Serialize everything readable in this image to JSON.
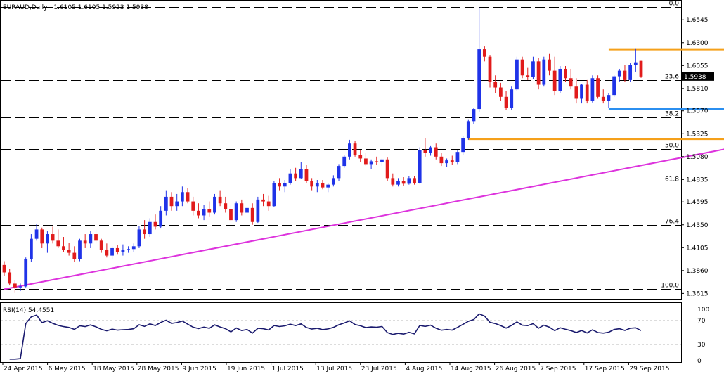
{
  "header": {
    "symbol": "EURAUD,Daily",
    "ohlc": "1.6105 1.6105 1.5923 1.5938"
  },
  "rsi_header": "RSI(14) 54.4551",
  "colors": {
    "bull": "#1f33e8",
    "bear": "#e11b1b",
    "trendline": "#dd33dd",
    "resistance": "#f5a01a",
    "support": "#2b8ff0",
    "rsi": "#1a1a6e",
    "grid": "#000000"
  },
  "chart_data": {
    "type": "candlestick",
    "price_axis": {
      "ticks": [
        "1.6545",
        "1.6300",
        "1.6055",
        "1.5810",
        "1.5570",
        "1.5325",
        "1.5080",
        "1.4835",
        "1.4595",
        "1.4350",
        "1.4105",
        "1.3860",
        "1.3615"
      ],
      "range": [
        1.355,
        1.672
      ],
      "current_price": "1.5938"
    },
    "date_axis": [
      "24 Apr 2015",
      "6 May 2015",
      "18 May 2015",
      "28 May 2015",
      "9 Jun 2015",
      "19 Jun 2015",
      "1 Jul 2015",
      "13 Jul 2015",
      "23 Jul 2015",
      "4 Aug 2015",
      "14 Aug 2015",
      "26 Aug 2015",
      "7 Sep 2015",
      "17 Sep 2015",
      "29 Sep 2015"
    ],
    "fibonacci": [
      {
        "label": "0.0",
        "price": 1.668
      },
      {
        "label": "23.6",
        "price": 1.5902
      },
      {
        "label": "38.2",
        "price": 1.55
      },
      {
        "label": "50.0",
        "price": 1.516
      },
      {
        "label": "61.8",
        "price": 1.48
      },
      {
        "label": "76.4",
        "price": 1.435
      },
      {
        "label": "100.0",
        "price": 1.366
      }
    ],
    "annotations": {
      "trendline": [
        [
          1.366,
          0
        ],
        [
          1.539,
          154
        ]
      ],
      "resistance_high": {
        "price": 1.623,
        "from": 112,
        "to": 154
      },
      "support_low": {
        "price": 1.559,
        "from": 112,
        "to": 154
      },
      "resistance_mid": {
        "price": 1.527,
        "from": 86,
        "to": 154
      }
    },
    "candles": [
      [
        1.392,
        1.396,
        1.38,
        1.384
      ],
      [
        1.384,
        1.388,
        1.37,
        1.372
      ],
      [
        1.372,
        1.376,
        1.362,
        1.368
      ],
      [
        1.368,
        1.372,
        1.364,
        1.369
      ],
      [
        1.369,
        1.4,
        1.368,
        1.398
      ],
      [
        1.398,
        1.425,
        1.395,
        1.42
      ],
      [
        1.42,
        1.436,
        1.418,
        1.43
      ],
      [
        1.43,
        1.432,
        1.41,
        1.415
      ],
      [
        1.415,
        1.428,
        1.405,
        1.425
      ],
      [
        1.425,
        1.433,
        1.415,
        1.418
      ],
      [
        1.418,
        1.43,
        1.41,
        1.412
      ],
      [
        1.412,
        1.422,
        1.406,
        1.408
      ],
      [
        1.408,
        1.416,
        1.402,
        1.405
      ],
      [
        1.405,
        1.412,
        1.395,
        1.398
      ],
      [
        1.398,
        1.42,
        1.396,
        1.418
      ],
      [
        1.418,
        1.425,
        1.41,
        1.415
      ],
      [
        1.415,
        1.428,
        1.41,
        1.425
      ],
      [
        1.425,
        1.43,
        1.415,
        1.418
      ],
      [
        1.418,
        1.42,
        1.405,
        1.408
      ],
      [
        1.408,
        1.415,
        1.4,
        1.402
      ],
      [
        1.402,
        1.412,
        1.398,
        1.41
      ],
      [
        1.41,
        1.413,
        1.403,
        1.406
      ],
      [
        1.406,
        1.414,
        1.402,
        1.408
      ],
      [
        1.408,
        1.412,
        1.405,
        1.409
      ],
      [
        1.409,
        1.415,
        1.406,
        1.412
      ],
      [
        1.412,
        1.434,
        1.41,
        1.43
      ],
      [
        1.43,
        1.44,
        1.42,
        1.425
      ],
      [
        1.425,
        1.442,
        1.422,
        1.438
      ],
      [
        1.438,
        1.446,
        1.43,
        1.433
      ],
      [
        1.433,
        1.455,
        1.431,
        1.45
      ],
      [
        1.45,
        1.472,
        1.445,
        1.465
      ],
      [
        1.465,
        1.47,
        1.45,
        1.455
      ],
      [
        1.455,
        1.468,
        1.45,
        1.46
      ],
      [
        1.46,
        1.476,
        1.455,
        1.47
      ],
      [
        1.47,
        1.474,
        1.458,
        1.46
      ],
      [
        1.46,
        1.465,
        1.445,
        1.45
      ],
      [
        1.45,
        1.458,
        1.442,
        1.445
      ],
      [
        1.445,
        1.456,
        1.44,
        1.452
      ],
      [
        1.452,
        1.46,
        1.444,
        1.448
      ],
      [
        1.448,
        1.468,
        1.446,
        1.465
      ],
      [
        1.465,
        1.472,
        1.455,
        1.458
      ],
      [
        1.458,
        1.465,
        1.448,
        1.452
      ],
      [
        1.452,
        1.456,
        1.438,
        1.44
      ],
      [
        1.44,
        1.46,
        1.438,
        1.458
      ],
      [
        1.458,
        1.462,
        1.445,
        1.448
      ],
      [
        1.448,
        1.456,
        1.442,
        1.453
      ],
      [
        1.453,
        1.458,
        1.435,
        1.438
      ],
      [
        1.438,
        1.465,
        1.437,
        1.462
      ],
      [
        1.462,
        1.468,
        1.455,
        1.46
      ],
      [
        1.46,
        1.466,
        1.45,
        1.455
      ],
      [
        1.455,
        1.482,
        1.454,
        1.48
      ],
      [
        1.48,
        1.485,
        1.472,
        1.476
      ],
      [
        1.476,
        1.483,
        1.47,
        1.48
      ],
      [
        1.48,
        1.495,
        1.478,
        1.49
      ],
      [
        1.49,
        1.496,
        1.482,
        1.485
      ],
      [
        1.485,
        1.502,
        1.484,
        1.495
      ],
      [
        1.495,
        1.499,
        1.48,
        1.482
      ],
      [
        1.482,
        1.485,
        1.472,
        1.476
      ],
      [
        1.476,
        1.483,
        1.47,
        1.48
      ],
      [
        1.48,
        1.483,
        1.473,
        1.475
      ],
      [
        1.475,
        1.48,
        1.47,
        1.478
      ],
      [
        1.478,
        1.488,
        1.476,
        1.485
      ],
      [
        1.485,
        1.5,
        1.482,
        1.498
      ],
      [
        1.498,
        1.51,
        1.496,
        1.508
      ],
      [
        1.508,
        1.526,
        1.505,
        1.522
      ],
      [
        1.522,
        1.525,
        1.508,
        1.51
      ],
      [
        1.51,
        1.515,
        1.502,
        1.506
      ],
      [
        1.506,
        1.512,
        1.498,
        1.5
      ],
      [
        1.5,
        1.505,
        1.495,
        1.503
      ],
      [
        1.503,
        1.508,
        1.499,
        1.502
      ],
      [
        1.502,
        1.506,
        1.498,
        1.505
      ],
      [
        1.505,
        1.507,
        1.482,
        1.485
      ],
      [
        1.485,
        1.49,
        1.476,
        1.478
      ],
      [
        1.478,
        1.485,
        1.476,
        1.482
      ],
      [
        1.482,
        1.486,
        1.477,
        1.479
      ],
      [
        1.479,
        1.487,
        1.478,
        1.485
      ],
      [
        1.485,
        1.487,
        1.478,
        1.48
      ],
      [
        1.48,
        1.518,
        1.479,
        1.515
      ],
      [
        1.515,
        1.528,
        1.508,
        1.512
      ],
      [
        1.512,
        1.52,
        1.509,
        1.518
      ],
      [
        1.518,
        1.522,
        1.505,
        1.508
      ],
      [
        1.508,
        1.512,
        1.498,
        1.501
      ],
      [
        1.501,
        1.506,
        1.497,
        1.504
      ],
      [
        1.504,
        1.509,
        1.499,
        1.502
      ],
      [
        1.502,
        1.515,
        1.5,
        1.513
      ],
      [
        1.513,
        1.53,
        1.51,
        1.528
      ],
      [
        1.528,
        1.548,
        1.526,
        1.546
      ],
      [
        1.546,
        1.56,
        1.543,
        1.559
      ],
      [
        1.559,
        1.668,
        1.556,
        1.623
      ],
      [
        1.623,
        1.626,
        1.61,
        1.615
      ],
      [
        1.615,
        1.617,
        1.582,
        1.588
      ],
      [
        1.588,
        1.595,
        1.576,
        1.582
      ],
      [
        1.582,
        1.587,
        1.568,
        1.572
      ],
      [
        1.572,
        1.578,
        1.558,
        1.56
      ],
      [
        1.56,
        1.583,
        1.558,
        1.58
      ],
      [
        1.58,
        1.615,
        1.578,
        1.612
      ],
      [
        1.612,
        1.615,
        1.592,
        1.595
      ],
      [
        1.595,
        1.603,
        1.59,
        1.593
      ],
      [
        1.593,
        1.615,
        1.591,
        1.61
      ],
      [
        1.61,
        1.614,
        1.58,
        1.585
      ],
      [
        1.585,
        1.615,
        1.583,
        1.612
      ],
      [
        1.612,
        1.618,
        1.595,
        1.6
      ],
      [
        1.6,
        1.615,
        1.574,
        1.578
      ],
      [
        1.578,
        1.605,
        1.576,
        1.602
      ],
      [
        1.602,
        1.605,
        1.588,
        1.592
      ],
      [
        1.592,
        1.602,
        1.58,
        1.583
      ],
      [
        1.583,
        1.592,
        1.565,
        1.57
      ],
      [
        1.57,
        1.586,
        1.565,
        1.585
      ],
      [
        1.585,
        1.59,
        1.565,
        1.568
      ],
      [
        1.568,
        1.595,
        1.566,
        1.592
      ],
      [
        1.592,
        1.595,
        1.57,
        1.572
      ],
      [
        1.572,
        1.58,
        1.565,
        1.568
      ],
      [
        1.568,
        1.576,
        1.56,
        1.574
      ],
      [
        1.574,
        1.596,
        1.572,
        1.594
      ],
      [
        1.594,
        1.602,
        1.588,
        1.6
      ],
      [
        1.6,
        1.606,
        1.588,
        1.59
      ],
      [
        1.59,
        1.608,
        1.588,
        1.606
      ],
      [
        1.606,
        1.624,
        1.599,
        1.609
      ],
      [
        1.6105,
        1.6105,
        1.5923,
        1.5938
      ]
    ],
    "rsi": {
      "label": "RSI(14)",
      "value": "54.4551",
      "levels": [
        70,
        30
      ],
      "axis_ticks": [
        "100",
        "70",
        "30",
        "0"
      ]
    }
  }
}
